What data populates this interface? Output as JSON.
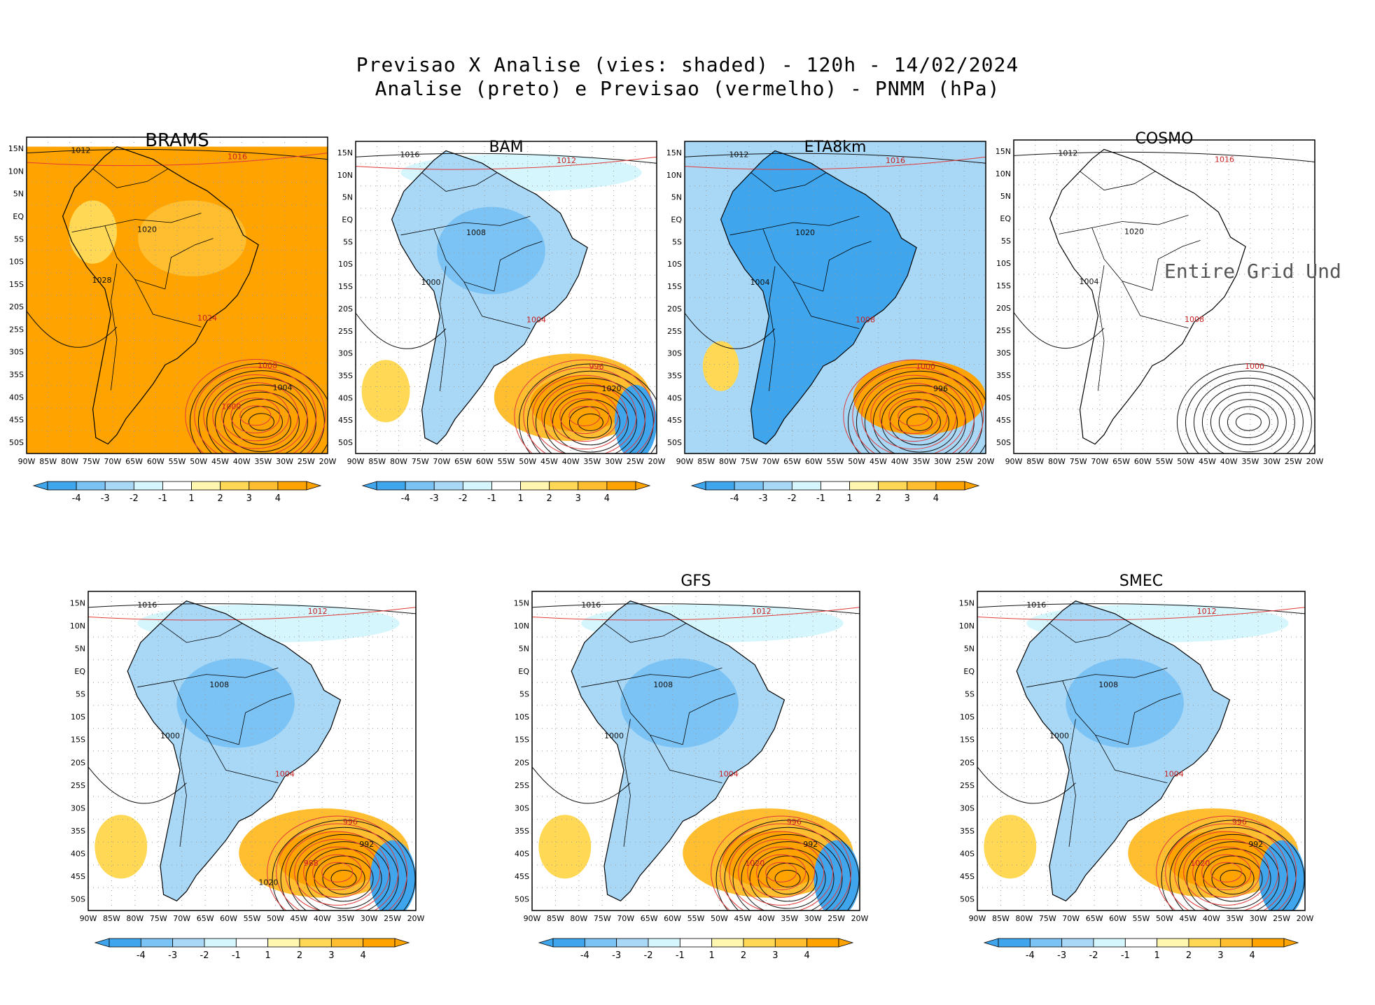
{
  "title": {
    "line1": "Previsao X Analise (vies: shaded) - 120h - 14/02/2024",
    "line2": "Analise (preto) e Previsao (vermelho) - PNMM (hPa)"
  },
  "axes": {
    "lat_labels": [
      "15N",
      "10N",
      "5N",
      "EQ",
      "5S",
      "10S",
      "15S",
      "20S",
      "25S",
      "30S",
      "35S",
      "40S",
      "45S",
      "50S"
    ],
    "lon_labels": [
      "90W",
      "85W",
      "80W",
      "75W",
      "70W",
      "65W",
      "60W",
      "55W",
      "50W",
      "45W",
      "40W",
      "35W",
      "30W",
      "25W",
      "20W"
    ]
  },
  "colorbar": {
    "labels": [
      "-4",
      "-3",
      "-2",
      "-1",
      "1",
      "2",
      "3",
      "4"
    ],
    "colors": [
      "#3fa6ee",
      "#7cc3f5",
      "#a9d8f7",
      "#d6f6fd",
      "#ffffff",
      "#fff6b0",
      "#ffd955",
      "#ffbd30",
      "#ffa300"
    ]
  },
  "panels": [
    {
      "name": "BRAMS",
      "title": "BRAMS",
      "style": "orange",
      "note": "",
      "labels": [
        "1012",
        "1016",
        "1020",
        "1024",
        "1028",
        "1008",
        "1004",
        "1000"
      ]
    },
    {
      "name": "BAM",
      "title": "BAM",
      "style": "mixed",
      "note": "",
      "labels": [
        "1016",
        "1012",
        "1008",
        "1004",
        "1000",
        "996",
        "1020"
      ]
    },
    {
      "name": "ETA8km",
      "title": "ETA8km",
      "style": "blue",
      "note": "",
      "labels": [
        "1012",
        "1016",
        "1020",
        "1008",
        "1004",
        "1000",
        "996"
      ]
    },
    {
      "name": "COSMO",
      "title": "COSMO",
      "style": "empty",
      "note": "Entire Grid Und",
      "labels": [
        "1012",
        "1016",
        "1020",
        "1008",
        "1004",
        "1000"
      ]
    },
    {
      "name": "BOTTOM-LEFT",
      "title": "",
      "style": "mixed",
      "note": "",
      "labels": [
        "1016",
        "1012",
        "1008",
        "1004",
        "1000",
        "996",
        "992",
        "988",
        "1020"
      ]
    },
    {
      "name": "GFS",
      "title": "GFS",
      "style": "mixed",
      "note": "",
      "labels": [
        "1016",
        "1012",
        "1008",
        "1004",
        "1000",
        "996",
        "992",
        "1020"
      ]
    },
    {
      "name": "SMEC",
      "title": "SMEC",
      "style": "mixed",
      "note": "",
      "labels": [
        "1016",
        "1012",
        "1008",
        "1004",
        "1000",
        "996",
        "992",
        "1020"
      ]
    }
  ]
}
